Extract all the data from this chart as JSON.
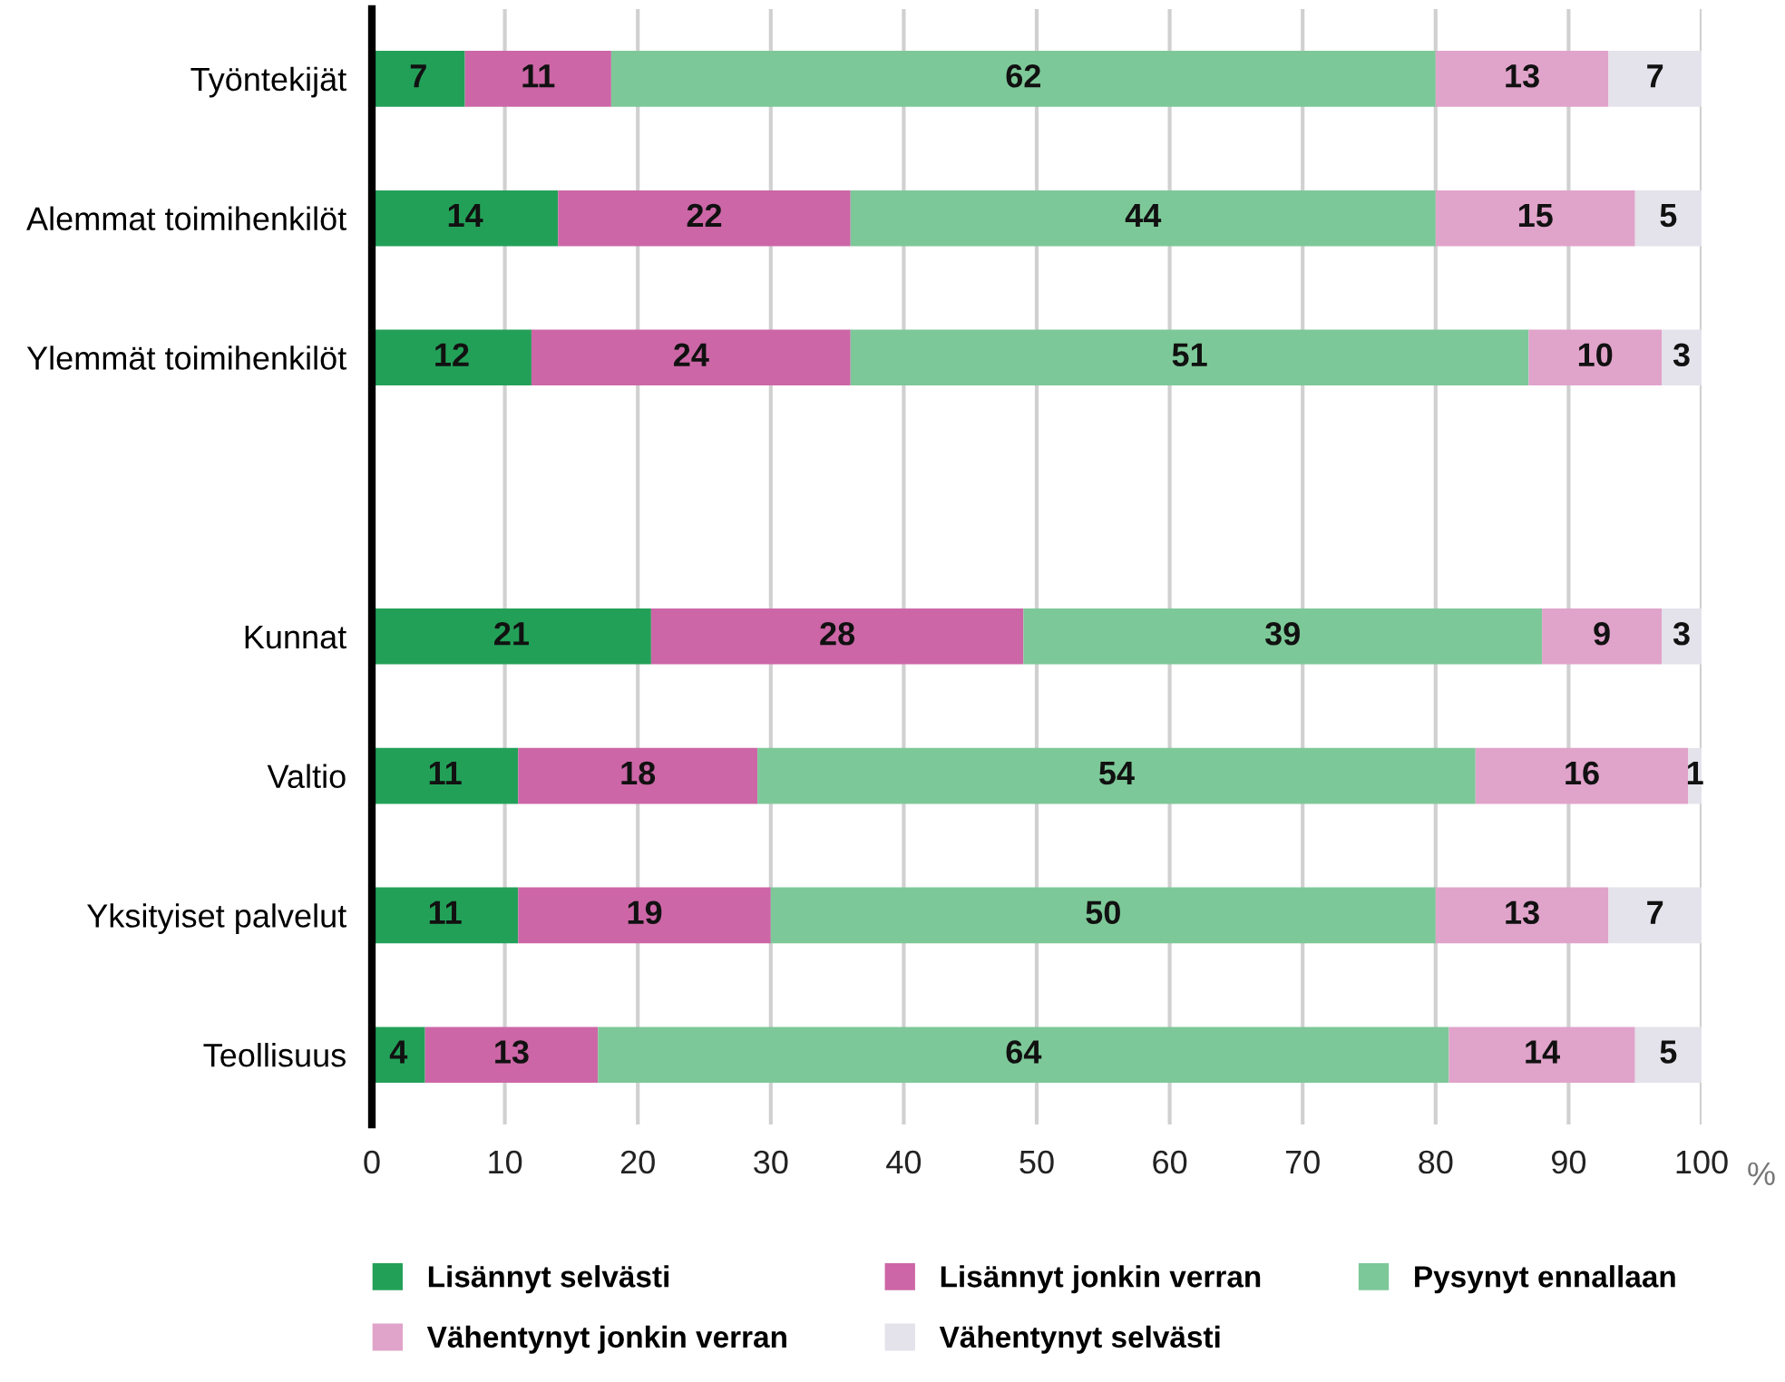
{
  "chart_data": {
    "type": "bar",
    "orientation": "horizontal",
    "stacked": true,
    "categories": [
      "Työntekijät",
      "Alemmat toimihenkilöt",
      "Ylemmät toimihenkilöt",
      null,
      "Kunnat",
      "Valtio",
      "Yksityiset palvelut",
      "Teollisuus"
    ],
    "series": [
      {
        "name": "Lisännyt selvästi",
        "color": "#23a058",
        "values": [
          7,
          14,
          12,
          null,
          21,
          11,
          11,
          4
        ]
      },
      {
        "name": "Lisännyt jonkin verran",
        "color": "#cc66a6",
        "values": [
          11,
          22,
          24,
          null,
          28,
          18,
          19,
          13
        ]
      },
      {
        "name": "Pysynyt ennallaan",
        "color": "#7dc898",
        "values": [
          62,
          44,
          51,
          null,
          39,
          54,
          50,
          64
        ]
      },
      {
        "name": "Vähentynyt jonkin verran",
        "color": "#e0a3ca",
        "values": [
          13,
          15,
          10,
          null,
          9,
          16,
          13,
          14
        ]
      },
      {
        "name": "Vähentynyt selvästi",
        "color": "#e4e2ea",
        "values": [
          7,
          5,
          3,
          null,
          3,
          1,
          7,
          5
        ]
      }
    ],
    "xlabel": "%",
    "xlim": [
      0,
      100
    ],
    "xticks": [
      0,
      10,
      20,
      30,
      40,
      50,
      60,
      70,
      80,
      90,
      100
    ],
    "grid": "x",
    "legend": "bottom",
    "data_labels": true
  }
}
